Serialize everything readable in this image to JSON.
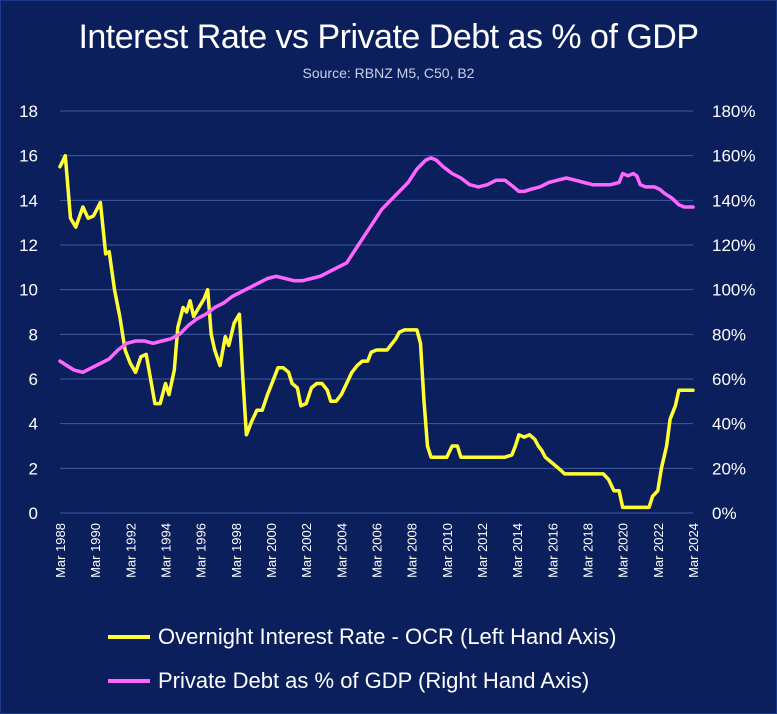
{
  "chart_data": {
    "type": "line",
    "title": "Interest Rate vs Private Debt as % of GDP",
    "subtitle": "Source: RBNZ M5, C50, B2",
    "x_tick_labels": [
      "Mar 1988",
      "Mar 1990",
      "Mar 1992",
      "Mar 1994",
      "Mar 1996",
      "Mar 1998",
      "Mar 2000",
      "Mar 2002",
      "Mar 2004",
      "Mar 2006",
      "Mar 2008",
      "Mar 2010",
      "Mar 2012",
      "Mar 2014",
      "Mar 2016",
      "Mar 2018",
      "Mar 2020",
      "Mar 2022",
      "Mar 2024"
    ],
    "xlim": [
      1988.2,
      2024.2
    ],
    "y_left": {
      "ylim": [
        0,
        18
      ],
      "ticks": [
        "0",
        "2",
        "4",
        "6",
        "8",
        "10",
        "12",
        "14",
        "16",
        "18"
      ]
    },
    "y_right": {
      "ylim": [
        0,
        180
      ],
      "ticks": [
        "0%",
        "20%",
        "40%",
        "60%",
        "80%",
        "100%",
        "120%",
        "140%",
        "160%",
        "180%"
      ]
    },
    "grid": true,
    "legend_position": "bottom",
    "series": [
      {
        "name": "Overnight Interest Rate - OCR (Left Hand Axis)",
        "axis": "left",
        "color": "#ffff33",
        "points": [
          [
            1988.2,
            15.5
          ],
          [
            1988.5,
            16.0
          ],
          [
            1988.8,
            13.2
          ],
          [
            1989.1,
            12.8
          ],
          [
            1989.5,
            13.7
          ],
          [
            1989.8,
            13.2
          ],
          [
            1990.1,
            13.3
          ],
          [
            1990.5,
            13.9
          ],
          [
            1990.8,
            11.6
          ],
          [
            1991.0,
            11.7
          ],
          [
            1991.3,
            10.0
          ],
          [
            1991.6,
            8.8
          ],
          [
            1991.9,
            7.3
          ],
          [
            1992.2,
            6.7
          ],
          [
            1992.5,
            6.3
          ],
          [
            1992.8,
            7.0
          ],
          [
            1993.1,
            7.1
          ],
          [
            1993.4,
            5.8
          ],
          [
            1993.6,
            4.9
          ],
          [
            1993.9,
            4.9
          ],
          [
            1994.2,
            5.8
          ],
          [
            1994.4,
            5.3
          ],
          [
            1994.7,
            6.4
          ],
          [
            1994.9,
            8.3
          ],
          [
            1995.2,
            9.2
          ],
          [
            1995.4,
            9.0
          ],
          [
            1995.6,
            9.5
          ],
          [
            1995.8,
            8.8
          ],
          [
            1996.1,
            9.2
          ],
          [
            1996.4,
            9.6
          ],
          [
            1996.6,
            10.0
          ],
          [
            1996.8,
            8.0
          ],
          [
            1997.0,
            7.3
          ],
          [
            1997.3,
            6.6
          ],
          [
            1997.6,
            7.9
          ],
          [
            1997.8,
            7.5
          ],
          [
            1998.1,
            8.5
          ],
          [
            1998.4,
            8.9
          ],
          [
            1998.6,
            6.0
          ],
          [
            1998.8,
            3.5
          ],
          [
            1999.1,
            4.1
          ],
          [
            1999.4,
            4.6
          ],
          [
            1999.7,
            4.6
          ],
          [
            2000.0,
            5.3
          ],
          [
            2000.3,
            5.9
          ],
          [
            2000.6,
            6.5
          ],
          [
            2000.9,
            6.5
          ],
          [
            2001.2,
            6.3
          ],
          [
            2001.4,
            5.8
          ],
          [
            2001.7,
            5.6
          ],
          [
            2001.9,
            4.8
          ],
          [
            2002.2,
            4.9
          ],
          [
            2002.5,
            5.6
          ],
          [
            2002.8,
            5.8
          ],
          [
            2003.1,
            5.8
          ],
          [
            2003.4,
            5.5
          ],
          [
            2003.6,
            5.0
          ],
          [
            2003.9,
            5.0
          ],
          [
            2004.2,
            5.3
          ],
          [
            2004.5,
            5.8
          ],
          [
            2004.8,
            6.3
          ],
          [
            2005.1,
            6.6
          ],
          [
            2005.4,
            6.8
          ],
          [
            2005.7,
            6.8
          ],
          [
            2005.9,
            7.2
          ],
          [
            2006.2,
            7.3
          ],
          [
            2006.5,
            7.3
          ],
          [
            2006.8,
            7.3
          ],
          [
            2007.1,
            7.6
          ],
          [
            2007.3,
            7.8
          ],
          [
            2007.5,
            8.1
          ],
          [
            2007.8,
            8.2
          ],
          [
            2008.0,
            8.2
          ],
          [
            2008.3,
            8.2
          ],
          [
            2008.5,
            8.2
          ],
          [
            2008.7,
            7.6
          ],
          [
            2008.9,
            5.0
          ],
          [
            2009.1,
            3.0
          ],
          [
            2009.3,
            2.5
          ],
          [
            2009.6,
            2.5
          ],
          [
            2009.9,
            2.5
          ],
          [
            2010.2,
            2.5
          ],
          [
            2010.5,
            3.0
          ],
          [
            2010.8,
            3.0
          ],
          [
            2011.0,
            2.5
          ],
          [
            2011.3,
            2.5
          ],
          [
            2011.6,
            2.5
          ],
          [
            2012.0,
            2.5
          ],
          [
            2012.5,
            2.5
          ],
          [
            2013.0,
            2.5
          ],
          [
            2013.5,
            2.5
          ],
          [
            2013.9,
            2.6
          ],
          [
            2014.1,
            3.0
          ],
          [
            2014.3,
            3.5
          ],
          [
            2014.6,
            3.4
          ],
          [
            2014.9,
            3.5
          ],
          [
            2015.2,
            3.3
          ],
          [
            2015.4,
            3.0
          ],
          [
            2015.6,
            2.8
          ],
          [
            2015.8,
            2.5
          ],
          [
            2016.1,
            2.3
          ],
          [
            2016.4,
            2.1
          ],
          [
            2016.7,
            1.9
          ],
          [
            2016.9,
            1.75
          ],
          [
            2017.2,
            1.75
          ],
          [
            2017.5,
            1.75
          ],
          [
            2017.8,
            1.75
          ],
          [
            2018.2,
            1.75
          ],
          [
            2018.7,
            1.75
          ],
          [
            2019.1,
            1.75
          ],
          [
            2019.4,
            1.5
          ],
          [
            2019.7,
            1.0
          ],
          [
            2020.0,
            1.0
          ],
          [
            2020.2,
            0.25
          ],
          [
            2020.6,
            0.25
          ],
          [
            2021.0,
            0.25
          ],
          [
            2021.4,
            0.25
          ],
          [
            2021.7,
            0.25
          ],
          [
            2021.9,
            0.75
          ],
          [
            2022.2,
            1.0
          ],
          [
            2022.4,
            2.0
          ],
          [
            2022.7,
            3.0
          ],
          [
            2022.9,
            4.2
          ],
          [
            2023.2,
            4.8
          ],
          [
            2023.4,
            5.5
          ],
          [
            2023.7,
            5.5
          ],
          [
            2024.2,
            5.5
          ]
        ]
      },
      {
        "name": "Private Debt as % of GDP (Right Hand Axis)",
        "axis": "right",
        "color": "#ff66ff",
        "points": [
          [
            1988.2,
            68
          ],
          [
            1988.6,
            66
          ],
          [
            1989.0,
            64
          ],
          [
            1989.5,
            63
          ],
          [
            1990.0,
            65
          ],
          [
            1990.5,
            67
          ],
          [
            1991.0,
            69
          ],
          [
            1991.5,
            73
          ],
          [
            1992.0,
            76
          ],
          [
            1992.5,
            77
          ],
          [
            1993.0,
            77
          ],
          [
            1993.5,
            76
          ],
          [
            1994.0,
            77
          ],
          [
            1994.5,
            78
          ],
          [
            1995.0,
            80
          ],
          [
            1995.5,
            84
          ],
          [
            1996.0,
            87
          ],
          [
            1996.5,
            89
          ],
          [
            1997.0,
            92
          ],
          [
            1997.5,
            94
          ],
          [
            1998.0,
            97
          ],
          [
            1998.5,
            99
          ],
          [
            1999.0,
            101
          ],
          [
            1999.5,
            103
          ],
          [
            2000.0,
            105
          ],
          [
            2000.5,
            106
          ],
          [
            2001.0,
            105
          ],
          [
            2001.5,
            104
          ],
          [
            2002.0,
            104
          ],
          [
            2002.5,
            105
          ],
          [
            2003.0,
            106
          ],
          [
            2003.5,
            108
          ],
          [
            2004.0,
            110
          ],
          [
            2004.5,
            112
          ],
          [
            2005.0,
            118
          ],
          [
            2005.5,
            124
          ],
          [
            2006.0,
            130
          ],
          [
            2006.5,
            136
          ],
          [
            2007.0,
            140
          ],
          [
            2007.5,
            144
          ],
          [
            2008.0,
            148
          ],
          [
            2008.5,
            154
          ],
          [
            2009.0,
            158
          ],
          [
            2009.3,
            159
          ],
          [
            2009.6,
            158
          ],
          [
            2010.0,
            155
          ],
          [
            2010.5,
            152
          ],
          [
            2011.0,
            150
          ],
          [
            2011.5,
            147
          ],
          [
            2012.0,
            146
          ],
          [
            2012.5,
            147
          ],
          [
            2013.0,
            149
          ],
          [
            2013.5,
            149
          ],
          [
            2014.0,
            146
          ],
          [
            2014.3,
            144
          ],
          [
            2014.6,
            144
          ],
          [
            2015.0,
            145
          ],
          [
            2015.5,
            146
          ],
          [
            2016.0,
            148
          ],
          [
            2016.5,
            149
          ],
          [
            2017.0,
            150
          ],
          [
            2017.5,
            149
          ],
          [
            2018.0,
            148
          ],
          [
            2018.5,
            147
          ],
          [
            2019.0,
            147
          ],
          [
            2019.5,
            147
          ],
          [
            2020.0,
            148
          ],
          [
            2020.2,
            152
          ],
          [
            2020.5,
            151
          ],
          [
            2020.8,
            152
          ],
          [
            2021.0,
            151
          ],
          [
            2021.2,
            147
          ],
          [
            2021.5,
            146
          ],
          [
            2022.0,
            146
          ],
          [
            2022.3,
            145
          ],
          [
            2022.6,
            143
          ],
          [
            2023.0,
            141
          ],
          [
            2023.4,
            138
          ],
          [
            2023.7,
            137
          ],
          [
            2024.2,
            137
          ]
        ]
      }
    ]
  }
}
